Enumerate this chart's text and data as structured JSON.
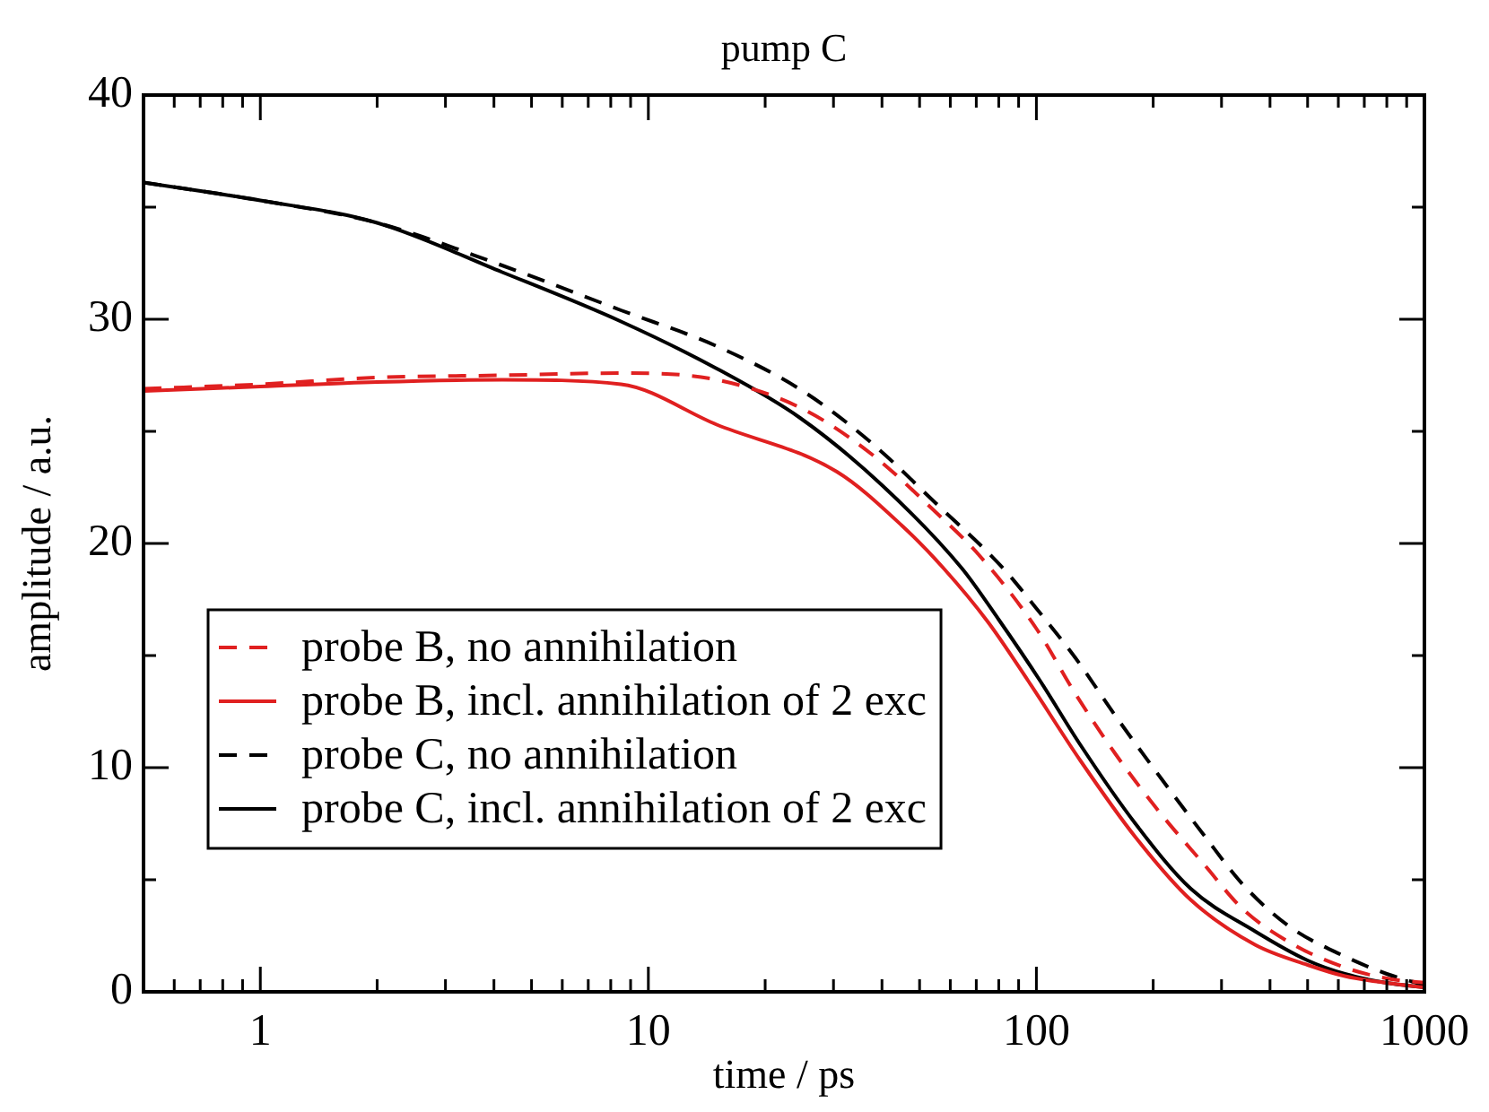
{
  "chart_data": {
    "type": "line",
    "title": "pump C",
    "xlabel": "time / ps",
    "ylabel": "amplitude / a.u.",
    "log": "x",
    "grid": false,
    "legend": "left",
    "marker": "none",
    "xlim": [
      0.5,
      1000
    ],
    "ylim": [
      0,
      40
    ],
    "xticks": [
      {
        "value": 0.6,
        "label": null
      },
      {
        "value": 0.7,
        "label": null
      },
      {
        "value": 0.8,
        "label": null
      },
      {
        "value": 0.9,
        "label": null
      },
      1,
      {
        "value": 2,
        "label": null
      },
      {
        "value": 3,
        "label": null
      },
      {
        "value": 4,
        "label": null
      },
      {
        "value": 5,
        "label": null
      },
      {
        "value": 6,
        "label": null
      },
      {
        "value": 7,
        "label": null
      },
      {
        "value": 8,
        "label": null
      },
      {
        "value": 9,
        "label": null
      },
      10,
      {
        "value": 20,
        "label": null
      },
      {
        "value": 30,
        "label": null
      },
      {
        "value": 40,
        "label": null
      },
      {
        "value": 50,
        "label": null
      },
      {
        "value": 60,
        "label": null
      },
      {
        "value": 70,
        "label": null
      },
      {
        "value": 80,
        "label": null
      },
      {
        "value": 90,
        "label": null
      },
      100,
      {
        "value": 200,
        "label": null
      },
      {
        "value": 300,
        "label": null
      },
      {
        "value": 400,
        "label": null
      },
      {
        "value": 500,
        "label": null
      },
      {
        "value": 600,
        "label": null
      },
      {
        "value": 700,
        "label": null
      },
      {
        "value": 800,
        "label": null
      },
      {
        "value": 900,
        "label": null
      },
      1000
    ],
    "yticks": [
      0,
      {
        "value": 5,
        "label": null
      },
      10,
      {
        "value": 15,
        "label": null
      },
      20,
      {
        "value": 25,
        "label": null
      },
      30,
      {
        "value": 35,
        "label": null
      },
      40
    ],
    "series": [
      {
        "name": "probe B, no annihilation",
        "color": "#e02020",
        "line_style": "dashed",
        "x": [
          0.5,
          1,
          2,
          4.2,
          8.5,
          15,
          25,
          37.5,
          55,
          71,
          100,
          126,
          160,
          208,
          270,
          340,
          450,
          620,
          800,
          1000
        ],
        "values": [
          26.9,
          27.1,
          27.4,
          27.5,
          27.6,
          27.3,
          26.0,
          24.0,
          21.4,
          19.5,
          16.2,
          13.3,
          10.6,
          8.0,
          5.7,
          3.7,
          2.2,
          1.1,
          0.6,
          0.4
        ]
      },
      {
        "name": "probe B, incl. annihilation of 2 exc",
        "color": "#e02020",
        "line_style": "solid",
        "x": [
          0.5,
          1,
          2,
          4.2,
          8.5,
          15,
          30.6,
          45,
          57.6,
          75,
          95,
          130,
          180,
          250,
          366,
          500,
          624,
          800,
          1000
        ],
        "values": [
          26.8,
          27.0,
          27.2,
          27.3,
          27.1,
          25.3,
          23.2,
          20.8,
          18.9,
          16.5,
          13.9,
          10.3,
          6.9,
          4.1,
          2.1,
          1.2,
          0.7,
          0.4,
          0.2
        ]
      },
      {
        "name": "probe C, no annihilation",
        "color": "#000000",
        "line_style": "dashed",
        "x": [
          0.5,
          1,
          2,
          4.2,
          8.5,
          15,
          25,
          37.5,
          55,
          82,
          100,
          126,
          160,
          208,
          270,
          340,
          450,
          620,
          800,
          1000
        ],
        "values": [
          36.1,
          35.3,
          34.3,
          32.4,
          30.4,
          28.8,
          26.8,
          24.5,
          21.8,
          18.9,
          17.1,
          14.9,
          12.3,
          9.6,
          7.0,
          4.8,
          2.9,
          1.6,
          0.8,
          0.3
        ]
      },
      {
        "name": "probe C, incl. annihilation of 2 exc",
        "color": "#000000",
        "line_style": "solid",
        "x": [
          0.5,
          1,
          2,
          4.2,
          8.5,
          15,
          24.6,
          40,
          64.2,
          80,
          102,
          130,
          180,
          250,
          366,
          500,
          624,
          800,
          1000
        ],
        "values": [
          36.1,
          35.3,
          34.3,
          32.1,
          29.9,
          27.8,
          25.6,
          22.6,
          18.9,
          16.6,
          13.9,
          11.0,
          7.5,
          4.6,
          2.7,
          1.4,
          0.8,
          0.4,
          0.2
        ]
      }
    ]
  }
}
